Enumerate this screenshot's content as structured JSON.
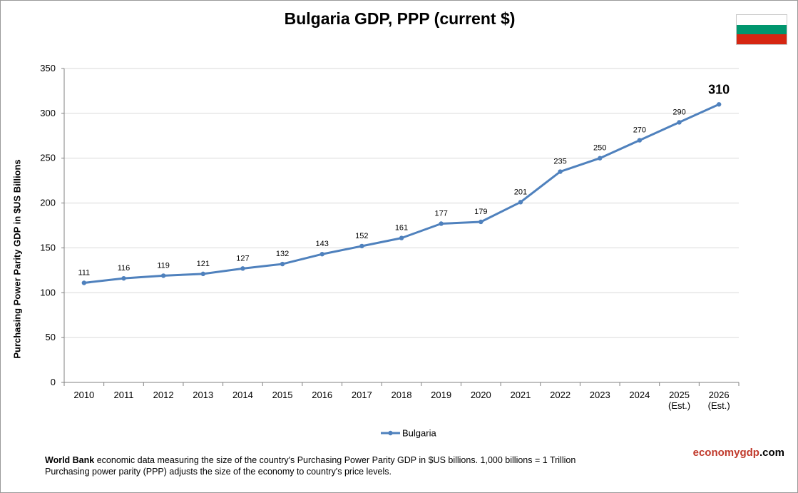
{
  "title": "Bulgaria GDP, PPP (current $)",
  "flag_colors": [
    "#ffffff",
    "#00966e",
    "#d62612"
  ],
  "footer": {
    "source_bold": "World Bank",
    "line1_rest": " economic data measuring the size of the country's Purchasing Power Parity GDP in $US billions. 1,000 billions = 1 Trillion",
    "line2": "Purchasing power parity (PPP) adjusts the size of the economy to country's price levels."
  },
  "brand": {
    "part1": "economy",
    "part2": "gdp",
    "part3": ".com",
    "color1": "#c0392b",
    "color2": "#000000"
  },
  "chart_data": {
    "type": "line",
    "title": "Bulgaria GDP, PPP (current $)",
    "ylabel": "Purchasing Power Parity GDP in $US Billions",
    "xlabel": "",
    "categories": [
      "2010",
      "2011",
      "2012",
      "2013",
      "2014",
      "2015",
      "2016",
      "2017",
      "2018",
      "2019",
      "2020",
      "2021",
      "2022",
      "2023",
      "2024",
      "2025\n(Est.)",
      "2026\n(Est.)"
    ],
    "series": [
      {
        "name": "Bulgaria",
        "color": "#4f81bd",
        "values": [
          111,
          116,
          119,
          121,
          127,
          132,
          143,
          152,
          161,
          177,
          179,
          201,
          235,
          250,
          270,
          290,
          310
        ]
      }
    ],
    "ylim": [
      0,
      350
    ],
    "yticks": [
      0,
      50,
      100,
      150,
      200,
      250,
      300,
      350
    ],
    "grid": true,
    "legend": "bottom-center",
    "highlight_last_label": true
  }
}
